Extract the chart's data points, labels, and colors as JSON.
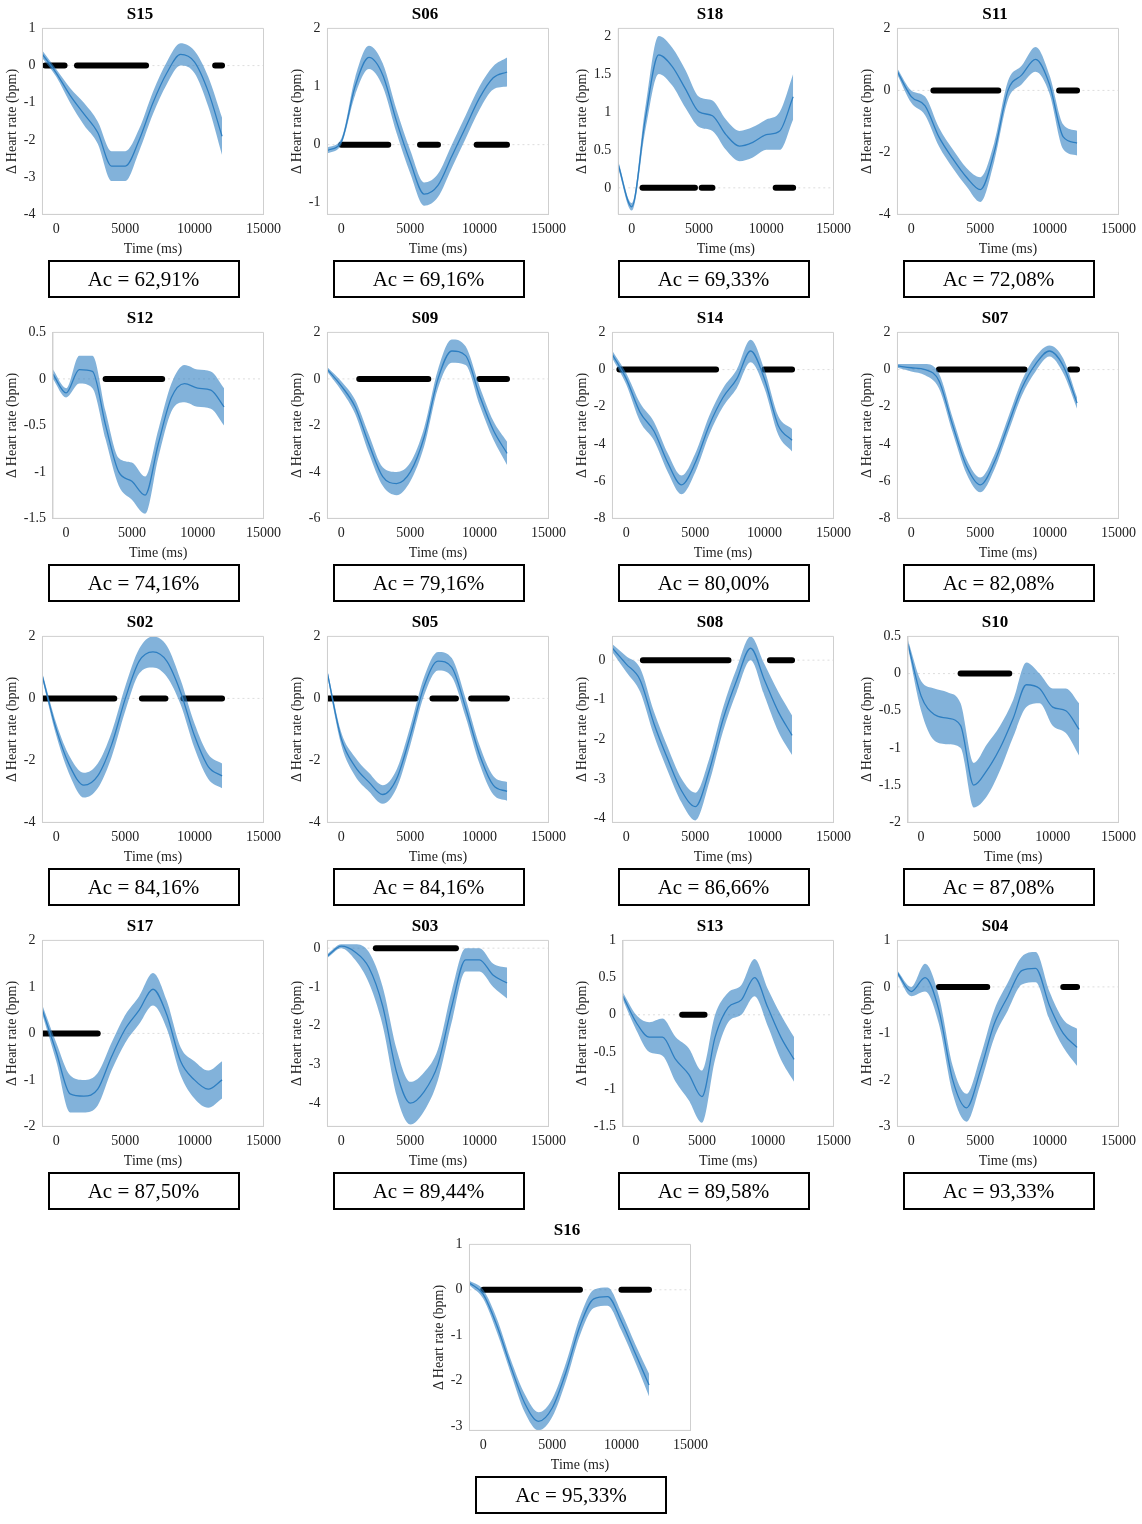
{
  "chart_data": [
    {
      "type": "line",
      "title": "S15",
      "xlabel": "Time (ms)",
      "ylabel": "Δ Heart rate (bpm)",
      "xlim": [
        -1000,
        15000
      ],
      "xticks": [
        0,
        5000,
        10000,
        15000
      ],
      "ylim": [
        -4,
        1
      ],
      "yticks": [
        -4,
        -3,
        -2,
        -1,
        0,
        1
      ],
      "grid": false,
      "legend": false,
      "marker": "none",
      "line_style": "solid",
      "annotations": [
        "Ac = 62,91%"
      ],
      "ref_lines": [
        {
          "axis": "y",
          "value": 0,
          "color": "#dddddd"
        }
      ],
      "x": [
        -1000,
        0,
        1000,
        2000,
        3000,
        4000,
        5000,
        6000,
        7000,
        8000,
        9000,
        10000,
        11000,
        12000
      ],
      "series": [
        {
          "color": "#2f7fc1",
          "values": [
            0.3,
            -0.2,
            -0.8,
            -1.3,
            -1.8,
            -2.7,
            -2.7,
            -2.0,
            -1.0,
            -0.2,
            0.3,
            0.1,
            -0.7,
            -1.9
          ],
          "lower": [
            0.2,
            -0.3,
            -1.0,
            -1.6,
            -2.1,
            -3.1,
            -3.1,
            -2.3,
            -1.3,
            -0.5,
            0.0,
            -0.2,
            -1.1,
            -2.4
          ],
          "upper": [
            0.4,
            -0.1,
            -0.6,
            -1.0,
            -1.5,
            -2.3,
            -2.3,
            -1.7,
            -0.7,
            0.1,
            0.6,
            0.4,
            -0.3,
            -1.4
          ]
        },
        {
          "color": "#000000",
          "x": [
            -800,
            600,
            1000,
            1500,
            6500,
            9000,
            11500,
            12000
          ],
          "values": [
            0,
            0,
            null,
            0,
            0,
            null,
            0,
            0
          ]
        }
      ]
    },
    {
      "type": "line",
      "title": "S06",
      "xlabel": "Time (ms)",
      "ylabel": "Δ Heart rate (bpm)",
      "xlim": [
        -1000,
        15000
      ],
      "xticks": [
        0,
        5000,
        10000,
        15000
      ],
      "ylim": [
        -1.2,
        2
      ],
      "yticks": [
        -1,
        0,
        1,
        2
      ],
      "grid": false,
      "legend": false,
      "marker": "none",
      "line_style": "solid",
      "annotations": [
        "Ac = 69,16%"
      ],
      "ref_lines": [
        {
          "axis": "y",
          "value": 0,
          "color": "#dddddd"
        }
      ],
      "x": [
        -1000,
        0,
        1000,
        2000,
        3000,
        4000,
        5000,
        6000,
        7000,
        8000,
        9000,
        10000,
        11000,
        12000
      ],
      "series": [
        {
          "color": "#2f7fc1",
          "values": [
            -0.1,
            0.05,
            1.0,
            1.5,
            1.2,
            0.4,
            -0.3,
            -0.85,
            -0.7,
            -0.2,
            0.3,
            0.8,
            1.15,
            1.25
          ],
          "lower": [
            -0.15,
            0.0,
            0.85,
            1.3,
            1.0,
            0.2,
            -0.5,
            -1.05,
            -0.9,
            -0.4,
            0.1,
            0.6,
            0.95,
            1.0
          ],
          "upper": [
            -0.05,
            0.1,
            1.15,
            1.7,
            1.4,
            0.6,
            -0.1,
            -0.65,
            -0.5,
            0.0,
            0.5,
            1.0,
            1.35,
            1.5
          ]
        },
        {
          "color": "#000000",
          "x": [
            0,
            3400,
            4500,
            5700,
            7000,
            8500,
            9800,
            12000
          ],
          "values": [
            0,
            0,
            null,
            0,
            0,
            null,
            0,
            0
          ]
        }
      ]
    },
    {
      "type": "line",
      "title": "S18",
      "xlabel": "Time (ms)",
      "ylabel": "Δ Heart rate (bpm)",
      "xlim": [
        -1000,
        15000
      ],
      "xticks": [
        0,
        5000,
        10000,
        15000
      ],
      "ylim": [
        -0.35,
        2.1
      ],
      "yticks": [
        0,
        0.5,
        1,
        1.5,
        2
      ],
      "grid": false,
      "legend": false,
      "marker": "none",
      "line_style": "solid",
      "annotations": [
        "Ac = 69,33%"
      ],
      "ref_lines": [
        {
          "axis": "y",
          "value": 0,
          "color": "#dddddd"
        }
      ],
      "x": [
        -1000,
        0,
        1000,
        2000,
        3000,
        4000,
        5000,
        6000,
        7000,
        8000,
        9000,
        10000,
        11000,
        12000
      ],
      "series": [
        {
          "color": "#2f7fc1",
          "values": [
            0.3,
            -0.25,
            0.9,
            1.75,
            1.6,
            1.3,
            1.0,
            0.95,
            0.7,
            0.55,
            0.6,
            0.7,
            0.75,
            1.2
          ],
          "lower": [
            0.25,
            -0.3,
            0.75,
            1.5,
            1.35,
            1.05,
            0.8,
            0.75,
            0.5,
            0.35,
            0.4,
            0.5,
            0.5,
            0.9
          ],
          "upper": [
            0.35,
            -0.2,
            1.05,
            2.0,
            1.85,
            1.55,
            1.2,
            1.15,
            0.9,
            0.75,
            0.8,
            0.9,
            1.0,
            1.5
          ]
        },
        {
          "color": "#000000",
          "x": [
            800,
            4700,
            5000,
            5200,
            6000,
            8000,
            10700,
            12000
          ],
          "values": [
            0,
            0,
            null,
            0,
            0,
            null,
            0,
            0
          ]
        }
      ]
    },
    {
      "type": "line",
      "title": "S11",
      "xlabel": "Time (ms)",
      "ylabel": "Δ Heart rate (bpm)",
      "xlim": [
        -1000,
        15000
      ],
      "xticks": [
        0,
        5000,
        10000,
        15000
      ],
      "ylim": [
        -4,
        2
      ],
      "yticks": [
        -4,
        -2,
        0,
        2
      ],
      "grid": false,
      "legend": false,
      "marker": "none",
      "line_style": "solid",
      "annotations": [
        "Ac = 72,08%"
      ],
      "ref_lines": [
        {
          "axis": "y",
          "value": 0,
          "color": "#dddddd"
        }
      ],
      "x": [
        -1000,
        0,
        1000,
        2000,
        3000,
        4000,
        5000,
        6000,
        7000,
        8000,
        9000,
        10000,
        11000,
        12000
      ],
      "series": [
        {
          "color": "#2f7fc1",
          "values": [
            0.6,
            -0.2,
            -0.5,
            -1.5,
            -2.2,
            -2.8,
            -3.2,
            -2.0,
            0.0,
            0.5,
            1.0,
            0.2,
            -1.5,
            -1.7
          ],
          "lower": [
            0.5,
            -0.4,
            -0.8,
            -1.8,
            -2.5,
            -3.1,
            -3.6,
            -2.3,
            -0.3,
            0.2,
            0.6,
            -0.1,
            -1.9,
            -2.1
          ],
          "upper": [
            0.7,
            0.0,
            -0.2,
            -1.2,
            -1.9,
            -2.5,
            -2.8,
            -1.7,
            0.3,
            0.8,
            1.4,
            0.5,
            -1.1,
            -1.3
          ]
        },
        {
          "color": "#000000",
          "x": [
            1600,
            6300,
            8500,
            10700,
            12000
          ],
          "values": [
            0,
            0,
            null,
            0,
            0
          ]
        }
      ]
    },
    {
      "type": "line",
      "title": "S12",
      "xlabel": "Time (ms)",
      "ylabel": "Δ Heart rate (bpm)",
      "xlim": [
        -1000,
        15000
      ],
      "xticks": [
        0,
        5000,
        10000,
        15000
      ],
      "ylim": [
        -1.5,
        0.5
      ],
      "yticks": [
        -1.5,
        -1,
        -0.5,
        0,
        0.5
      ],
      "grid": false,
      "legend": false,
      "marker": "none",
      "line_style": "solid",
      "annotations": [
        "Ac = 74,16%"
      ],
      "ref_lines": [
        {
          "axis": "y",
          "value": 0,
          "color": "#dddddd"
        }
      ],
      "x": [
        -1000,
        0,
        1000,
        2000,
        3000,
        4000,
        5000,
        6000,
        7000,
        8000,
        9000,
        10000,
        11000,
        12000
      ],
      "series": [
        {
          "color": "#2f7fc1",
          "values": [
            0.05,
            -0.15,
            0.1,
            0.08,
            -0.5,
            -1.0,
            -1.1,
            -1.25,
            -0.7,
            -0.2,
            -0.05,
            -0.1,
            -0.12,
            -0.3
          ],
          "lower": [
            0.0,
            -0.2,
            -0.05,
            -0.1,
            -0.65,
            -1.15,
            -1.3,
            -1.45,
            -0.85,
            -0.35,
            -0.25,
            -0.3,
            -0.32,
            -0.5
          ],
          "upper": [
            0.1,
            -0.1,
            0.25,
            0.25,
            -0.35,
            -0.85,
            -0.9,
            -1.05,
            -0.55,
            -0.05,
            0.15,
            0.1,
            0.08,
            -0.1
          ]
        },
        {
          "color": "#000000",
          "x": [
            3000,
            7300
          ],
          "values": [
            0,
            0
          ]
        }
      ]
    },
    {
      "type": "line",
      "title": "S09",
      "xlabel": "Time (ms)",
      "ylabel": "Δ Heart rate (bpm)",
      "xlim": [
        -1000,
        15000
      ],
      "xticks": [
        0,
        5000,
        10000,
        15000
      ],
      "ylim": [
        -6,
        2
      ],
      "yticks": [
        -6,
        -4,
        -2,
        0,
        2
      ],
      "grid": false,
      "legend": false,
      "marker": "none",
      "line_style": "solid",
      "annotations": [
        "Ac = 79,16%"
      ],
      "ref_lines": [
        {
          "axis": "y",
          "value": 0,
          "color": "#dddddd"
        }
      ],
      "x": [
        -1000,
        0,
        1000,
        2000,
        3000,
        4000,
        5000,
        6000,
        7000,
        8000,
        9000,
        10000,
        11000,
        12000
      ],
      "series": [
        {
          "color": "#2f7fc1",
          "values": [
            0.4,
            -0.3,
            -1.2,
            -2.8,
            -4.2,
            -4.5,
            -4.0,
            -2.5,
            0,
            1.2,
            1.0,
            -0.7,
            -2.2,
            -3.2
          ],
          "lower": [
            0.3,
            -0.5,
            -1.5,
            -3.2,
            -4.6,
            -5.0,
            -4.4,
            -2.9,
            -0.4,
            0.7,
            0.6,
            -1.1,
            -2.6,
            -3.7
          ],
          "upper": [
            0.5,
            -0.1,
            -0.9,
            -2.4,
            -3.8,
            -4.0,
            -3.6,
            -2.1,
            0.4,
            1.7,
            1.4,
            -0.3,
            -1.8,
            -2.7
          ]
        },
        {
          "color": "#000000",
          "x": [
            1300,
            6300,
            8000,
            10000,
            12000
          ],
          "values": [
            0,
            0,
            null,
            0,
            0
          ]
        }
      ]
    },
    {
      "type": "line",
      "title": "S14",
      "xlabel": "Time (ms)",
      "ylabel": "Δ Heart rate (bpm)",
      "xlim": [
        -1000,
        15000
      ],
      "xticks": [
        0,
        5000,
        10000,
        15000
      ],
      "ylim": [
        -8,
        2
      ],
      "yticks": [
        -8,
        -6,
        -4,
        -2,
        0,
        2
      ],
      "grid": false,
      "legend": false,
      "marker": "none",
      "line_style": "solid",
      "annotations": [
        "Ac = 80,00%"
      ],
      "ref_lines": [
        {
          "axis": "y",
          "value": 0,
          "color": "#dddddd"
        }
      ],
      "x": [
        -1000,
        0,
        1000,
        2000,
        3000,
        4000,
        5000,
        6000,
        7000,
        8000,
        9000,
        10000,
        11000,
        12000
      ],
      "series": [
        {
          "color": "#2f7fc1",
          "values": [
            0.8,
            -0.5,
            -2.3,
            -3.3,
            -5.0,
            -6.2,
            -5.0,
            -3.0,
            -1.5,
            -0.5,
            1.0,
            -0.5,
            -3.0,
            -3.8
          ],
          "lower": [
            0.6,
            -0.8,
            -2.8,
            -3.8,
            -5.5,
            -6.7,
            -5.5,
            -3.5,
            -2.0,
            -1.0,
            0.4,
            -1.0,
            -3.5,
            -4.4
          ],
          "upper": [
            1.0,
            -0.2,
            -1.8,
            -2.8,
            -4.5,
            -5.7,
            -4.5,
            -2.5,
            -1.0,
            0.0,
            1.6,
            0.0,
            -2.5,
            -3.2
          ]
        },
        {
          "color": "#000000",
          "x": [
            -500,
            6500,
            8000,
            10000,
            12000
          ],
          "values": [
            0,
            0,
            null,
            0,
            0
          ]
        }
      ]
    },
    {
      "type": "line",
      "title": "S07",
      "xlabel": "Time (ms)",
      "ylabel": "Δ Heart rate (bpm)",
      "xlim": [
        -1000,
        15000
      ],
      "xticks": [
        0,
        5000,
        10000,
        15000
      ],
      "ylim": [
        -8,
        2
      ],
      "yticks": [
        -8,
        -6,
        -4,
        -2,
        0,
        2
      ],
      "grid": false,
      "legend": false,
      "marker": "none",
      "line_style": "solid",
      "annotations": [
        "Ac = 82,08%"
      ],
      "ref_lines": [
        {
          "axis": "y",
          "value": 0,
          "color": "#dddddd"
        }
      ],
      "x": [
        -1000,
        0,
        1000,
        2000,
        3000,
        4000,
        5000,
        6000,
        7000,
        8000,
        9000,
        10000,
        11000,
        12000
      ],
      "series": [
        {
          "color": "#2f7fc1",
          "values": [
            0.2,
            0.1,
            0.0,
            -0.6,
            -3.0,
            -5.2,
            -6.2,
            -5.0,
            -3.0,
            -1.0,
            0.3,
            1.0,
            0.2,
            -1.8
          ],
          "lower": [
            0.1,
            -0.1,
            -0.3,
            -1.0,
            -3.4,
            -5.6,
            -6.6,
            -5.4,
            -3.4,
            -1.4,
            -0.1,
            0.7,
            -0.2,
            -2.1
          ],
          "upper": [
            0.3,
            0.3,
            0.3,
            -0.2,
            -2.6,
            -4.8,
            -5.8,
            -4.6,
            -2.6,
            -0.6,
            0.7,
            1.3,
            0.6,
            -1.5
          ]
        },
        {
          "color": "#000000",
          "x": [
            2000,
            8200,
            10000,
            11500,
            12000
          ],
          "values": [
            0,
            0,
            null,
            0,
            0
          ]
        }
      ]
    },
    {
      "type": "line",
      "title": "S02",
      "xlabel": "Time (ms)",
      "ylabel": "Δ Heart rate (bpm)",
      "xlim": [
        -1000,
        15000
      ],
      "xticks": [
        0,
        5000,
        10000,
        15000
      ],
      "ylim": [
        -4,
        2
      ],
      "yticks": [
        -4,
        -2,
        0,
        2
      ],
      "grid": false,
      "legend": false,
      "marker": "none",
      "line_style": "solid",
      "annotations": [
        "Ac = 84,16%"
      ],
      "ref_lines": [
        {
          "axis": "y",
          "value": 0,
          "color": "#dddddd"
        }
      ],
      "x": [
        -1000,
        0,
        1000,
        2000,
        3000,
        4000,
        5000,
        6000,
        7000,
        8000,
        9000,
        10000,
        11000,
        12000
      ],
      "series": [
        {
          "color": "#2f7fc1",
          "values": [
            0.7,
            -1.0,
            -2.2,
            -2.8,
            -2.5,
            -1.5,
            0,
            1.2,
            1.5,
            1.2,
            0.2,
            -1.2,
            -2.2,
            -2.5
          ],
          "lower": [
            0.6,
            -1.2,
            -2.5,
            -3.2,
            -2.9,
            -1.9,
            -0.4,
            0.8,
            1.0,
            0.7,
            -0.2,
            -1.6,
            -2.6,
            -2.9
          ],
          "upper": [
            0.8,
            -0.8,
            -1.9,
            -2.4,
            -2.1,
            -1.1,
            0.4,
            1.6,
            2.0,
            1.7,
            0.6,
            -0.8,
            -1.8,
            -2.1
          ]
        },
        {
          "color": "#000000",
          "x": [
            -1000,
            4200,
            5000,
            6200,
            7900,
            8500,
            9200,
            12000
          ],
          "values": [
            0,
            0,
            null,
            0,
            0,
            null,
            0,
            0
          ]
        }
      ]
    },
    {
      "type": "line",
      "title": "S05",
      "xlabel": "Time (ms)",
      "ylabel": "Δ Heart rate (bpm)",
      "xlim": [
        -1000,
        15000
      ],
      "xticks": [
        0,
        5000,
        10000,
        15000
      ],
      "ylim": [
        -4,
        2
      ],
      "yticks": [
        -4,
        -2,
        0,
        2
      ],
      "grid": false,
      "legend": false,
      "marker": "none",
      "line_style": "solid",
      "annotations": [
        "Ac = 84,16%"
      ],
      "ref_lines": [
        {
          "axis": "y",
          "value": 0,
          "color": "#dddddd"
        }
      ],
      "x": [
        -1000,
        0,
        1000,
        2000,
        3000,
        4000,
        5000,
        6000,
        7000,
        8000,
        9000,
        10000,
        11000,
        12000
      ],
      "series": [
        {
          "color": "#2f7fc1",
          "values": [
            0.8,
            -1.3,
            -2.2,
            -2.7,
            -3.1,
            -2.6,
            -1.2,
            0.4,
            1.2,
            1.0,
            -0.3,
            -1.8,
            -2.8,
            -3.0
          ],
          "lower": [
            0.7,
            -1.5,
            -2.5,
            -3.0,
            -3.4,
            -2.9,
            -1.5,
            0.1,
            0.9,
            0.7,
            -0.6,
            -2.1,
            -3.1,
            -3.3
          ],
          "upper": [
            0.9,
            -1.1,
            -1.9,
            -2.4,
            -2.8,
            -2.3,
            -0.9,
            0.7,
            1.5,
            1.3,
            0.0,
            -1.5,
            -2.5,
            -2.7
          ]
        },
        {
          "color": "#000000",
          "x": [
            -1000,
            5400,
            6000,
            6600,
            8300,
            8800,
            9400,
            12000
          ],
          "values": [
            0,
            0,
            null,
            0,
            0,
            null,
            0,
            0
          ]
        }
      ]
    },
    {
      "type": "line",
      "title": "S08",
      "xlabel": "Time (ms)",
      "ylabel": "Δ Heart rate (bpm)",
      "xlim": [
        -1000,
        15000
      ],
      "xticks": [
        0,
        5000,
        10000,
        15000
      ],
      "ylim": [
        -4.1,
        0.6
      ],
      "yticks": [
        -4,
        -3,
        -2,
        -1,
        0
      ],
      "grid": false,
      "legend": false,
      "marker": "none",
      "line_style": "solid",
      "annotations": [
        "Ac = 86,66%"
      ],
      "ref_lines": [
        {
          "axis": "y",
          "value": 0,
          "color": "#dddddd"
        }
      ],
      "x": [
        -1000,
        0,
        1000,
        2000,
        3000,
        4000,
        5000,
        6000,
        7000,
        8000,
        9000,
        10000,
        11000,
        12000
      ],
      "series": [
        {
          "color": "#2f7fc1",
          "values": [
            0.3,
            -0.1,
            -0.5,
            -1.6,
            -2.5,
            -3.3,
            -3.7,
            -2.8,
            -1.5,
            -0.5,
            0.3,
            -0.5,
            -1.3,
            -1.9
          ],
          "lower": [
            0.2,
            -0.3,
            -0.8,
            -1.9,
            -2.8,
            -3.6,
            -4.05,
            -3.1,
            -1.8,
            -0.8,
            0.0,
            -0.9,
            -1.8,
            -2.4
          ],
          "upper": [
            0.4,
            0.1,
            -0.2,
            -1.3,
            -2.2,
            -3.0,
            -3.35,
            -2.5,
            -1.2,
            -0.2,
            0.6,
            -0.1,
            -0.8,
            -1.4
          ]
        },
        {
          "color": "#000000",
          "x": [
            1200,
            7400,
            9000,
            10400,
            12000
          ],
          "values": [
            0,
            0,
            null,
            0,
            0
          ]
        }
      ]
    },
    {
      "type": "line",
      "title": "S10",
      "xlabel": "Time (ms)",
      "ylabel": "Δ Heart rate (bpm)",
      "xlim": [
        -1000,
        15000
      ],
      "xticks": [
        0,
        5000,
        10000,
        15000
      ],
      "ylim": [
        -2,
        0.5
      ],
      "yticks": [
        -2,
        -1.5,
        -1,
        -0.5,
        0,
        0.5
      ],
      "grid": false,
      "legend": false,
      "marker": "none",
      "line_style": "solid",
      "annotations": [
        "Ac = 87,08%"
      ],
      "ref_lines": [
        {
          "axis": "y",
          "value": 0,
          "color": "#dddddd"
        }
      ],
      "x": [
        -1000,
        0,
        1000,
        2000,
        3000,
        4000,
        5000,
        6000,
        7000,
        8000,
        9000,
        10000,
        11000,
        12000
      ],
      "series": [
        {
          "color": "#2f7fc1",
          "values": [
            0.4,
            -0.3,
            -0.55,
            -0.6,
            -0.7,
            -1.5,
            -1.3,
            -1.0,
            -0.6,
            -0.15,
            -0.2,
            -0.45,
            -0.5,
            -0.75
          ],
          "lower": [
            0.35,
            -0.5,
            -0.9,
            -0.95,
            -1.0,
            -1.8,
            -1.65,
            -1.3,
            -0.85,
            -0.45,
            -0.4,
            -0.7,
            -0.8,
            -1.1
          ],
          "upper": [
            0.45,
            -0.1,
            -0.2,
            -0.25,
            -0.4,
            -1.2,
            -0.95,
            -0.7,
            -0.35,
            0.15,
            0.0,
            -0.2,
            -0.2,
            -0.4
          ]
        },
        {
          "color": "#000000",
          "x": [
            3000,
            6700
          ],
          "values": [
            0,
            0
          ]
        }
      ]
    },
    {
      "type": "line",
      "title": "S17",
      "xlabel": "Time (ms)",
      "ylabel": "Δ Heart rate (bpm)",
      "xlim": [
        -1000,
        15000
      ],
      "xticks": [
        0,
        5000,
        10000,
        15000
      ],
      "ylim": [
        -2,
        2
      ],
      "yticks": [
        -2,
        -1,
        0,
        1,
        2
      ],
      "grid": false,
      "legend": false,
      "marker": "none",
      "line_style": "solid",
      "annotations": [
        "Ac = 87,50%"
      ],
      "ref_lines": [
        {
          "axis": "y",
          "value": 0,
          "color": "#dddddd"
        }
      ],
      "x": [
        -1000,
        0,
        1000,
        2000,
        3000,
        4000,
        5000,
        6000,
        7000,
        8000,
        9000,
        10000,
        11000,
        12000
      ],
      "series": [
        {
          "color": "#2f7fc1",
          "values": [
            0.5,
            -0.4,
            -1.3,
            -1.35,
            -1.2,
            -0.5,
            0.1,
            0.5,
            0.95,
            0.4,
            -0.6,
            -1.0,
            -1.2,
            -1.0
          ],
          "lower": [
            0.4,
            -0.6,
            -1.7,
            -1.7,
            -1.55,
            -0.8,
            -0.2,
            0.2,
            0.6,
            0.1,
            -0.9,
            -1.4,
            -1.6,
            -1.4
          ],
          "upper": [
            0.6,
            -0.2,
            -0.9,
            -1.0,
            -0.85,
            -0.2,
            0.4,
            0.8,
            1.3,
            0.7,
            -0.3,
            -0.6,
            -0.8,
            -0.6
          ]
        },
        {
          "color": "#000000",
          "x": [
            -1000,
            3000
          ],
          "values": [
            0,
            0
          ]
        }
      ]
    },
    {
      "type": "line",
      "title": "S03",
      "xlabel": "Time (ms)",
      "ylabel": "Δ Heart rate (bpm)",
      "xlim": [
        -1000,
        15000
      ],
      "xticks": [
        0,
        5000,
        10000,
        15000
      ],
      "ylim": [
        -4.6,
        0.2
      ],
      "yticks": [
        -4,
        -3,
        -2,
        -1,
        0
      ],
      "grid": false,
      "legend": false,
      "marker": "none",
      "line_style": "solid",
      "annotations": [
        "Ac = 89,44%"
      ],
      "ref_lines": [
        {
          "axis": "y",
          "value": 0,
          "color": "#dddddd"
        }
      ],
      "x": [
        -1000,
        0,
        1000,
        2000,
        3000,
        4000,
        5000,
        6000,
        7000,
        8000,
        9000,
        10000,
        11000,
        12000
      ],
      "series": [
        {
          "color": "#2f7fc1",
          "values": [
            -0.2,
            0.05,
            -0.1,
            -0.5,
            -1.5,
            -3.2,
            -4.0,
            -3.7,
            -3.0,
            -1.5,
            -0.3,
            -0.3,
            -0.7,
            -0.9
          ],
          "lower": [
            -0.25,
            0.0,
            -0.3,
            -0.9,
            -2.0,
            -3.8,
            -4.55,
            -4.2,
            -3.4,
            -1.9,
            -0.6,
            -0.6,
            -1.0,
            -1.3
          ],
          "upper": [
            -0.15,
            0.1,
            0.1,
            -0.1,
            -1.0,
            -2.6,
            -3.45,
            -3.2,
            -2.6,
            -1.1,
            0.0,
            0.0,
            -0.4,
            -0.5
          ]
        },
        {
          "color": "#000000",
          "x": [
            2500,
            8300
          ],
          "values": [
            0,
            0
          ]
        }
      ]
    },
    {
      "type": "line",
      "title": "S13",
      "xlabel": "Time (ms)",
      "ylabel": "Δ Heart rate (bpm)",
      "xlim": [
        -1000,
        15000
      ],
      "xticks": [
        0,
        5000,
        10000,
        15000
      ],
      "ylim": [
        -1.5,
        1
      ],
      "yticks": [
        -1.5,
        -1,
        -0.5,
        0,
        0.5,
        1
      ],
      "grid": false,
      "legend": false,
      "marker": "none",
      "line_style": "solid",
      "annotations": [
        "Ac = 89,58%"
      ],
      "ref_lines": [
        {
          "axis": "y",
          "value": 0,
          "color": "#dddddd"
        }
      ],
      "x": [
        -1000,
        0,
        1000,
        2000,
        3000,
        4000,
        5000,
        6000,
        7000,
        8000,
        9000,
        10000,
        11000,
        12000
      ],
      "series": [
        {
          "color": "#2f7fc1",
          "values": [
            0.25,
            -0.1,
            -0.3,
            -0.3,
            -0.6,
            -0.8,
            -1.1,
            -0.3,
            0.1,
            0.2,
            0.5,
            0.1,
            -0.3,
            -0.6
          ],
          "lower": [
            0.2,
            -0.2,
            -0.5,
            -0.55,
            -0.9,
            -1.15,
            -1.45,
            -0.6,
            -0.1,
            0.0,
            0.25,
            -0.15,
            -0.6,
            -0.9
          ],
          "upper": [
            0.3,
            0.0,
            -0.1,
            -0.05,
            -0.3,
            -0.45,
            -0.75,
            0.0,
            0.3,
            0.4,
            0.75,
            0.35,
            0.0,
            -0.3
          ]
        },
        {
          "color": "#000000",
          "x": [
            3500,
            5200
          ],
          "values": [
            0,
            0
          ]
        }
      ]
    },
    {
      "type": "line",
      "title": "S04",
      "xlabel": "Time (ms)",
      "ylabel": "Δ Heart rate (bpm)",
      "xlim": [
        -1000,
        15000
      ],
      "xticks": [
        0,
        5000,
        10000,
        15000
      ],
      "ylim": [
        -3,
        1
      ],
      "yticks": [
        -3,
        -2,
        -1,
        0,
        1
      ],
      "grid": false,
      "legend": false,
      "marker": "none",
      "line_style": "solid",
      "annotations": [
        "Ac = 93,33%"
      ],
      "ref_lines": [
        {
          "axis": "y",
          "value": 0,
          "color": "#dddddd"
        }
      ],
      "x": [
        -1000,
        0,
        1000,
        2000,
        3000,
        4000,
        5000,
        6000,
        7000,
        8000,
        9000,
        10000,
        11000,
        12000
      ],
      "series": [
        {
          "color": "#2f7fc1",
          "values": [
            0.3,
            -0.1,
            0.2,
            -0.5,
            -2.0,
            -2.6,
            -1.8,
            -0.8,
            -0.2,
            0.35,
            0.4,
            -0.4,
            -1.0,
            -1.3
          ],
          "lower": [
            0.25,
            -0.2,
            -0.1,
            -0.8,
            -2.3,
            -2.9,
            -2.1,
            -1.1,
            -0.5,
            0.05,
            0.1,
            -0.7,
            -1.3,
            -1.7
          ],
          "upper": [
            0.35,
            0.0,
            0.5,
            -0.2,
            -1.7,
            -2.3,
            -1.5,
            -0.5,
            0.1,
            0.65,
            0.75,
            -0.1,
            -0.7,
            -0.9
          ]
        },
        {
          "color": "#000000",
          "x": [
            2000,
            5500,
            8000,
            11000,
            12000
          ],
          "values": [
            0,
            0,
            null,
            0,
            0
          ]
        }
      ]
    },
    {
      "type": "line",
      "title": "S16",
      "xlabel": "Time (ms)",
      "ylabel": "Δ Heart rate (bpm)",
      "xlim": [
        -1000,
        15000
      ],
      "xticks": [
        0,
        5000,
        10000,
        15000
      ],
      "ylim": [
        -3.1,
        1
      ],
      "yticks": [
        -3,
        -2,
        -1,
        0,
        1
      ],
      "grid": false,
      "legend": false,
      "marker": "none",
      "line_style": "solid",
      "annotations": [
        "Ac = 95,33%"
      ],
      "ref_lines": [
        {
          "axis": "y",
          "value": 0,
          "color": "#dddddd"
        }
      ],
      "x": [
        -1000,
        0,
        1000,
        2000,
        3000,
        4000,
        5000,
        6000,
        7000,
        8000,
        9000,
        10000,
        11000,
        12000
      ],
      "series": [
        {
          "color": "#2f7fc1",
          "values": [
            0.15,
            -0.1,
            -0.8,
            -1.7,
            -2.5,
            -2.9,
            -2.6,
            -1.8,
            -0.8,
            -0.2,
            -0.15,
            -0.7,
            -1.4,
            -2.1
          ],
          "lower": [
            0.1,
            -0.2,
            -0.95,
            -1.85,
            -2.7,
            -3.1,
            -2.8,
            -2.0,
            -1.0,
            -0.4,
            -0.35,
            -0.9,
            -1.6,
            -2.35
          ],
          "upper": [
            0.2,
            0.0,
            -0.65,
            -1.55,
            -2.3,
            -2.7,
            -2.4,
            -1.6,
            -0.6,
            0.0,
            0.05,
            -0.5,
            -1.2,
            -1.85
          ]
        },
        {
          "color": "#000000",
          "x": [
            0,
            7000,
            8500,
            10000,
            12000
          ],
          "values": [
            0,
            0,
            null,
            0,
            0
          ]
        }
      ]
    }
  ]
}
